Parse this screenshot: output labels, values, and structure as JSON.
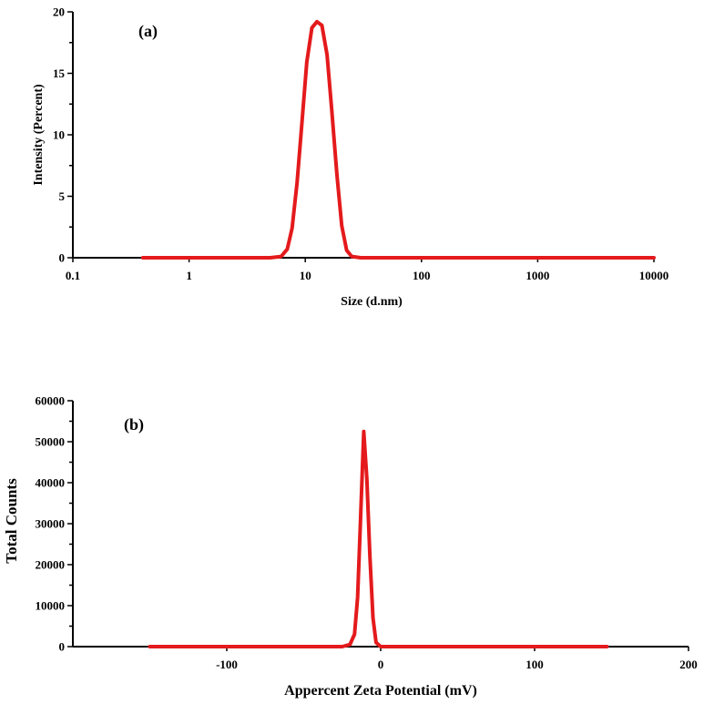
{
  "chart_data": [
    {
      "type": "line",
      "panel_label": "(a)",
      "xlabel": "Size (d.nm)",
      "ylabel": "Intensity (Percent)",
      "xscale": "log",
      "xlim": [
        0.1,
        10000
      ],
      "ylim": [
        0,
        20
      ],
      "xticks": [
        0.1,
        1,
        10,
        100,
        1000,
        10000
      ],
      "xtick_labels": [
        "0.1",
        "1",
        "10",
        "100",
        "1000",
        "10000"
      ],
      "yticks": [
        0,
        5,
        10,
        15,
        20
      ],
      "ytick_labels": [
        "0",
        "5",
        "10",
        "15",
        "20"
      ],
      "grid": false,
      "color": "#e41a1c",
      "series": [
        {
          "x": [
            0.4,
            1,
            5,
            6.2,
            7,
            7.7,
            8.5,
            9.4,
            10.3,
            11.4,
            12.6,
            13.9,
            15.4,
            16.9,
            18.7,
            20.6,
            22.7,
            25.1,
            30,
            100,
            1000,
            10000
          ],
          "y": [
            0,
            0,
            0,
            0.1,
            0.7,
            2.4,
            6.1,
            11.2,
            15.9,
            18.7,
            19.2,
            18.9,
            16.5,
            12,
            6.8,
            2.6,
            0.6,
            0.1,
            0,
            0,
            0,
            0
          ]
        }
      ]
    },
    {
      "type": "line",
      "panel_label": "(b)",
      "xlabel": "Appercent Zeta Potential (mV)",
      "ylabel": "Total Counts",
      "xlim": [
        -200,
        200
      ],
      "ylim": [
        0,
        60000
      ],
      "xticks": [
        -100,
        0,
        100,
        200
      ],
      "xtick_labels": [
        "-100",
        "0",
        "100",
        "200"
      ],
      "yticks": [
        0,
        10000,
        20000,
        30000,
        40000,
        50000,
        60000
      ],
      "ytick_labels": [
        "0",
        "10000",
        "20000",
        "30000",
        "40000",
        "50000",
        "60000"
      ],
      "grid": false,
      "color": "#e41a1c",
      "series": [
        {
          "x": [
            -150,
            -25,
            -20,
            -17,
            -15,
            -13,
            -11,
            -9,
            -7,
            -5,
            -3,
            0,
            10,
            50,
            100,
            147
          ],
          "y": [
            0,
            0,
            500,
            3000,
            12000,
            32000,
            52500,
            41000,
            22000,
            7000,
            1000,
            0,
            0,
            0,
            0,
            0
          ]
        }
      ]
    }
  ]
}
